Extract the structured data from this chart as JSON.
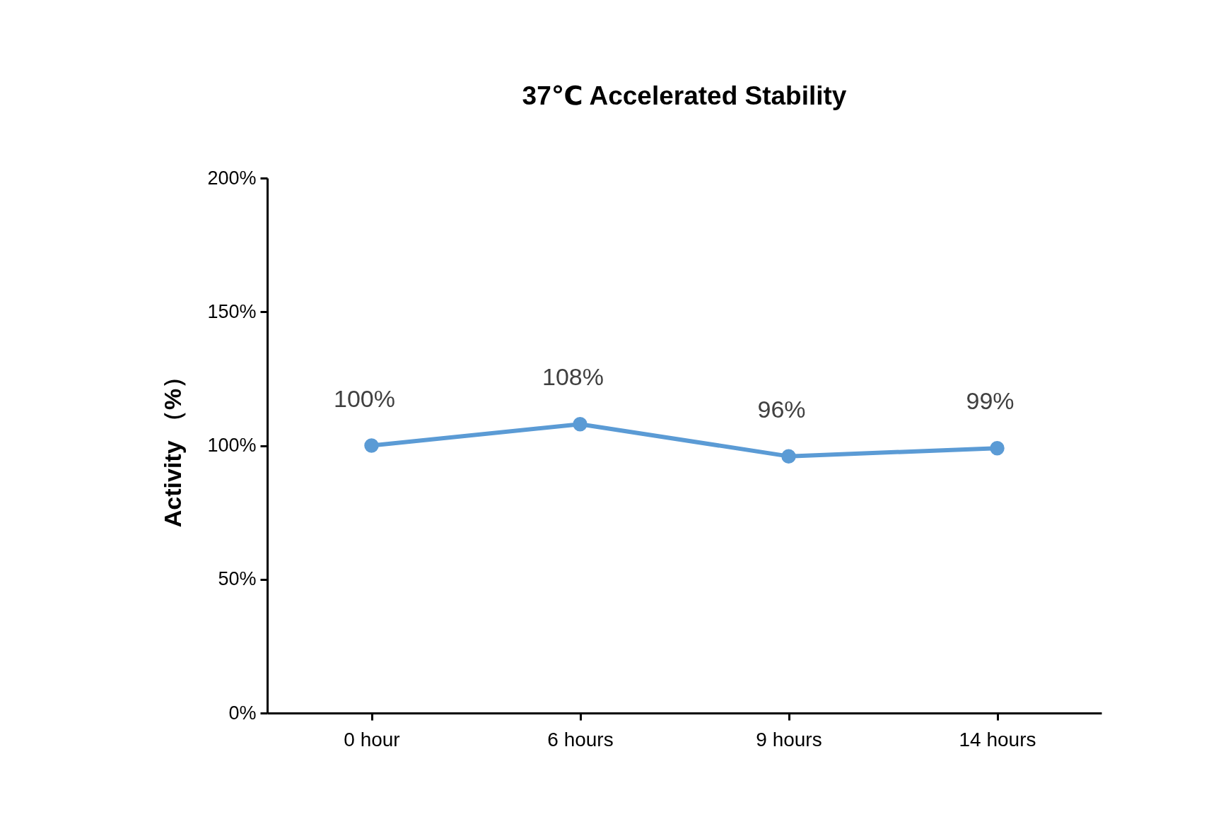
{
  "chart_data": {
    "type": "line",
    "title": "37℃ Accelerated Stability",
    "ylabel": "Activity （%）",
    "categories": [
      "0 hour",
      "6 hours",
      "9 hours",
      "14 hours"
    ],
    "series": [
      {
        "color": "#5b9bd5",
        "values": [
          100,
          108,
          96,
          99
        ],
        "value_labels": [
          "100%",
          "108%",
          "96%",
          "99%"
        ]
      }
    ],
    "ylim": [
      0,
      200
    ],
    "yticks": [
      {
        "value": 0,
        "label": "0%"
      },
      {
        "value": 50,
        "label": "50%"
      },
      {
        "value": 100,
        "label": "100%"
      },
      {
        "value": 150,
        "label": "150%"
      },
      {
        "value": 200,
        "label": "200%"
      }
    ],
    "marker": "circle"
  }
}
